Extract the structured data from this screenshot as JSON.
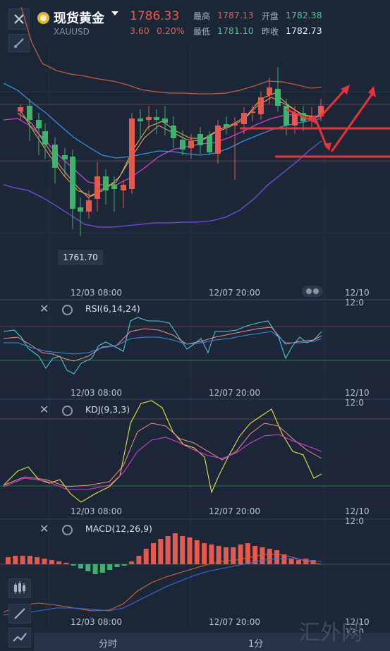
{
  "header": {
    "title": "现货黄金",
    "symbol": "XAUUSD",
    "price": "1786.33",
    "change": "3.60",
    "change_pct": "0.20%",
    "high_label": "最高",
    "high_value": "1787.13",
    "low_label": "最低",
    "low_value": "1781.10",
    "open_label": "开盘",
    "open_value": "1782.38",
    "prev_close_label": "昨收",
    "prev_close_value": "1782.73"
  },
  "main_chart": {
    "low_marker": "1761.70",
    "time_labels": [
      "12/03 08:00",
      "12/07 20:00",
      "12/10 12:0"
    ]
  },
  "indicators": [
    {
      "name": "RSI(6,14,24)",
      "time_labels": [
        "12/03 08:00",
        "12/07 20:00",
        "12/10 12:0"
      ]
    },
    {
      "name": "KDJ(9,3,3)",
      "time_labels": [
        "12/03 08:00",
        "12/07 20:00",
        "12/10 12:0"
      ]
    },
    {
      "name": "MACD(12,26,9)",
      "time_labels": [
        "12/03 08:00",
        "12/07 20:00",
        "12/10 12:0"
      ]
    }
  ],
  "bottom_bar": {
    "left_label": "分时",
    "right_label": "1分"
  },
  "watermark": "汇外网",
  "colors": {
    "up": "#e55a4e",
    "down": "#3fb26d",
    "background": "#1a2433",
    "annotation": "#e8333a"
  },
  "icons": [
    "close-icon",
    "draw-tool-icon",
    "gear-icon",
    "candle-icon",
    "pen-icon",
    "line-chart-icon"
  ]
}
